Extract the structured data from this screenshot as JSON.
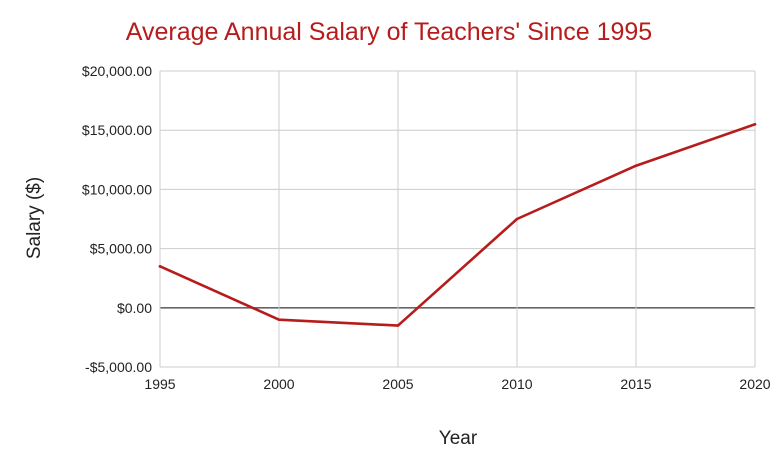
{
  "chart_data": {
    "type": "line",
    "title": "Average Annual Salary of Teachers' Since 1995",
    "xlabel": "Year",
    "ylabel": "Salary ($)",
    "x": [
      1995,
      2000,
      2005,
      2010,
      2015,
      2020
    ],
    "series": [
      {
        "values": [
          3500,
          -1000,
          -1500,
          7500,
          12000,
          15500
        ]
      }
    ],
    "xlim": [
      1995,
      2020
    ],
    "ylim": [
      -5000,
      20000
    ],
    "x_ticks": [
      "1995",
      "2000",
      "2005",
      "2010",
      "2015",
      "2020"
    ],
    "y_ticks": [
      {
        "value": 20000,
        "label": "$20,000.00"
      },
      {
        "value": 15000,
        "label": "$15,000.00"
      },
      {
        "value": 10000,
        "label": "$10,000.00"
      },
      {
        "value": 5000,
        "label": "$5,000.00"
      },
      {
        "value": 0,
        "label": "$0.00"
      },
      {
        "value": -5000,
        "label": "-$5,000.00"
      }
    ],
    "grid": true,
    "legend": "none",
    "colors": {
      "line": "#b71c1c",
      "title": "#b71c1c",
      "grid": "#cccccc",
      "zero_line": "#666666"
    }
  }
}
